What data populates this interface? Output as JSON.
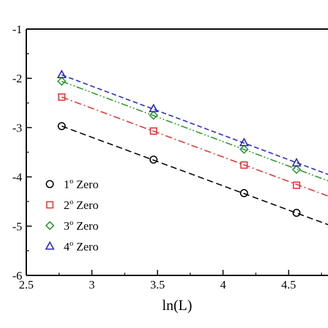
{
  "chart_data": {
    "type": "scatter",
    "xlabel": "ln(L)",
    "ylabel": "",
    "xlim": [
      2.5,
      4.8
    ],
    "ylim": [
      -6,
      -1
    ],
    "xticks": [
      "2.5",
      "3",
      "3.5",
      "4",
      "4.5"
    ],
    "xtick_values": [
      2.5,
      3,
      3.5,
      4,
      4.5
    ],
    "yticks": [
      "-1",
      "-2",
      "-3",
      "-4",
      "-5",
      "-6"
    ],
    "ytick_values": [
      -1,
      -2,
      -3,
      -4,
      -5,
      -6
    ],
    "grid": false,
    "legend_position": "bottom-left",
    "series": [
      {
        "name_main": "1",
        "name_sup": "o",
        "name_rest": " Zero",
        "marker": "circle",
        "line": "dashed",
        "color": "#000000",
        "x": [
          2.77,
          3.47,
          4.16,
          4.56
        ],
        "y": [
          -2.97,
          -3.65,
          -4.33,
          -4.73
        ],
        "fit": [
          [
            2.77,
            -2.97
          ],
          [
            4.8,
            -4.97
          ]
        ]
      },
      {
        "name_main": "2",
        "name_sup": "o",
        "name_rest": " Zero",
        "marker": "square",
        "line": "dash-dot",
        "color": "#e8302e",
        "x": [
          2.77,
          3.47,
          4.16,
          4.56
        ],
        "y": [
          -2.38,
          -3.07,
          -3.76,
          -4.17
        ],
        "fit": [
          [
            2.77,
            -2.38
          ],
          [
            4.8,
            -4.39
          ]
        ]
      },
      {
        "name_main": "3",
        "name_sup": "o",
        "name_rest": " Zero",
        "marker": "diamond",
        "line": "dash-dot-dot",
        "color": "#2a9a2a",
        "x": [
          2.77,
          3.47,
          4.16,
          4.56
        ],
        "y": [
          -2.06,
          -2.75,
          -3.44,
          -3.85
        ],
        "fit": [
          [
            2.77,
            -2.06
          ],
          [
            4.8,
            -4.08
          ]
        ]
      },
      {
        "name_main": "4",
        "name_sup": "o",
        "name_rest": " Zero",
        "marker": "triangle",
        "line": "dash-long",
        "color": "#2424d6",
        "x": [
          2.77,
          3.47,
          4.16,
          4.56
        ],
        "y": [
          -1.93,
          -2.62,
          -3.31,
          -3.72
        ],
        "fit": [
          [
            2.77,
            -1.93
          ],
          [
            4.8,
            -3.95
          ]
        ]
      }
    ]
  }
}
